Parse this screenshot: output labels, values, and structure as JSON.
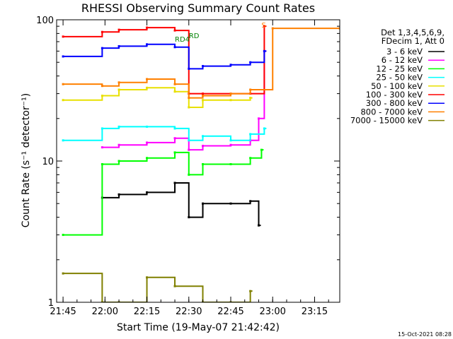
{
  "chart_data": {
    "type": "line",
    "title": "RHESSI Observing Summary Count Rates",
    "xlabel": "Start Time (19-May-07 21:42:42)",
    "ylabel": "Count Rate (s⁻¹ detector⁻¹)",
    "x_scale": "time",
    "y_scale": "log",
    "xlim": [
      "21:42:42",
      "23:24:00"
    ],
    "ylim": [
      1,
      100
    ],
    "x_ticks": [
      "21:45",
      "22:00",
      "22:15",
      "22:30",
      "22:45",
      "23:00",
      "23:15"
    ],
    "y_ticks": [
      "1",
      "10",
      "100"
    ],
    "grid": false,
    "legend_position": "right",
    "legend_header": [
      "Det 1,3,4,5,6,9,",
      "FDecim 1, Att 0"
    ],
    "series": [
      {
        "name": "3 - 6 keV",
        "color": "#000000",
        "x": [
          "21:59",
          "22:05",
          "22:15",
          "22:25",
          "22:30",
          "22:35",
          "22:45",
          "22:52",
          "22:55"
        ],
        "values": [
          5.5,
          5.8,
          6.0,
          7.0,
          4.0,
          5.0,
          5.0,
          5.2,
          3.5
        ]
      },
      {
        "name": "6 - 12 keV",
        "color": "#ff00ff",
        "x": [
          "21:59",
          "22:05",
          "22:15",
          "22:25",
          "22:30",
          "22:35",
          "22:45",
          "22:52",
          "22:55",
          "22:57"
        ],
        "values": [
          12.5,
          13.0,
          13.5,
          14.5,
          12.0,
          12.8,
          13.0,
          14.0,
          20,
          60
        ]
      },
      {
        "name": "12 - 25 keV",
        "color": "#00ff00",
        "x": [
          "21:45",
          "21:59",
          "22:05",
          "22:15",
          "22:25",
          "22:30",
          "22:35",
          "22:45",
          "22:52",
          "22:56"
        ],
        "values": [
          3.0,
          9.5,
          10.0,
          10.5,
          11.5,
          8.0,
          9.5,
          9.5,
          10.5,
          12
        ]
      },
      {
        "name": "25 - 50 keV",
        "color": "#00ffff",
        "x": [
          "21:45",
          "21:59",
          "22:05",
          "22:15",
          "22:25",
          "22:30",
          "22:35",
          "22:45",
          "22:52",
          "22:57"
        ],
        "values": [
          14.0,
          17.0,
          17.5,
          17.5,
          17.0,
          14.0,
          15.0,
          14.0,
          15.5,
          17
        ]
      },
      {
        "name": "50 - 100 keV",
        "color": "#e8e000",
        "x": [
          "21:45",
          "21:59",
          "22:05",
          "22:15",
          "22:25",
          "22:30",
          "22:35",
          "22:45",
          "22:52"
        ],
        "values": [
          27,
          29,
          32,
          33,
          31,
          24,
          27,
          27,
          28
        ]
      },
      {
        "name": "100 - 300 keV",
        "color": "#ff0000",
        "x": [
          "21:45",
          "21:59",
          "22:05",
          "22:15",
          "22:25",
          "22:30",
          "22:35",
          "22:45",
          "22:52",
          "22:57"
        ],
        "values": [
          76,
          82,
          85,
          88,
          84,
          30,
          30,
          30,
          30,
          90
        ]
      },
      {
        "name": "300 - 800 keV",
        "color": "#0000ff",
        "x": [
          "21:45",
          "21:59",
          "22:05",
          "22:15",
          "22:25",
          "22:30",
          "22:35",
          "22:45",
          "22:52",
          "22:57"
        ],
        "values": [
          55,
          63,
          65,
          67,
          64,
          45,
          47,
          48,
          50,
          60
        ]
      },
      {
        "name": "800 - 7000 keV",
        "color": "#ff8000",
        "x": [
          "21:45",
          "21:59",
          "22:05",
          "22:15",
          "22:25",
          "22:30",
          "22:35",
          "22:45",
          "22:52",
          "23:00",
          "23:24"
        ],
        "values": [
          35,
          34,
          36,
          38,
          35,
          28,
          29,
          30,
          32,
          87,
          87
        ]
      },
      {
        "name": "7000 - 15000 keV",
        "color": "#808000",
        "x": [
          "21:45",
          "21:59",
          "22:05",
          "22:15",
          "22:25",
          "22:35",
          "22:45",
          "22:52"
        ],
        "values": [
          1.6,
          1.0,
          1.0,
          1.5,
          1.3,
          1.0,
          1.0,
          1.2
        ]
      }
    ],
    "annotations": [
      {
        "text": "RD4",
        "x": "22:25",
        "y": 70,
        "color": "#008000"
      },
      {
        "text": "RD",
        "x": "22:30",
        "y": 74,
        "color": "#008000"
      },
      {
        "text": "S",
        "x": "22:56",
        "y": 88,
        "color": "#ff8000"
      }
    ],
    "footer_timestamp": "15-Oct-2021 08:28"
  }
}
